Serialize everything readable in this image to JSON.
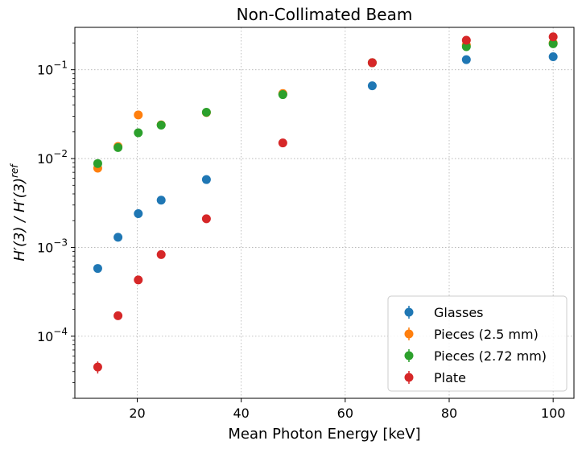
{
  "chart_data": {
    "type": "scatter",
    "title": "Non-Collimated Beam",
    "xlabel": "Mean Photon Energy [keV]",
    "ylabel": "H′(3) / H′(3)",
    "ylabel_superscript": "ref",
    "xlim": [
      8,
      104
    ],
    "ylim": [
      2e-05,
      0.3
    ],
    "yscale": "log",
    "grid": true,
    "legend_position": "lower-right",
    "x_ticks": [
      20,
      40,
      60,
      80,
      100
    ],
    "x_tick_labels": [
      "20",
      "40",
      "60",
      "80",
      "100"
    ],
    "y_ticks": [
      0.0001,
      0.001,
      0.01,
      0.1
    ],
    "y_tick_bases": [
      "10",
      "10",
      "10",
      "10"
    ],
    "y_tick_exponents": [
      "−4",
      "−3",
      "−2",
      "−1"
    ],
    "series": [
      {
        "name": "Glasses",
        "color": "#1f77b4",
        "x": [
          12.4,
          16.3,
          20.2,
          24.6,
          33.3,
          48,
          65.2,
          83.3,
          100
        ],
        "y": [
          0.00058,
          0.0013,
          0.0024,
          0.0034,
          0.0058,
          0.053,
          0.066,
          0.13,
          0.14
        ],
        "yerr": [
          6e-05,
          6e-05,
          0.0001,
          0.00014,
          0.0002,
          0.002,
          0.002,
          0.004,
          0.004
        ]
      },
      {
        "name": "Pieces (2.5 mm)",
        "color": "#ff7f0e",
        "x": [
          12.4,
          16.3,
          20.2,
          24.6,
          33.3,
          48,
          65.2,
          83.3,
          100
        ],
        "y": [
          0.0078,
          0.0137,
          0.031,
          0.024,
          0.033,
          0.054,
          0.12,
          0.19,
          0.2
        ],
        "yerr": [
          0.0003,
          0.0005,
          0.001,
          0.0008,
          0.001,
          0.002,
          0.004,
          0.005,
          0.005
        ]
      },
      {
        "name": "Pieces (2.72 mm)",
        "color": "#2ca02c",
        "x": [
          12.4,
          16.3,
          20.2,
          24.6,
          33.3,
          48,
          65.2,
          83.3,
          100
        ],
        "y": [
          0.0088,
          0.0133,
          0.0195,
          0.0238,
          0.0332,
          0.0525,
          0.12,
          0.182,
          0.196
        ],
        "yerr": [
          0.0003,
          0.0005,
          0.0007,
          0.0008,
          0.001,
          0.002,
          0.004,
          0.005,
          0.005
        ]
      },
      {
        "name": "Plate",
        "color": "#d62728",
        "x": [
          12.4,
          16.3,
          20.2,
          24.6,
          33.3,
          48,
          65.2,
          83.3,
          100
        ],
        "y": [
          4.5e-05,
          0.00017,
          0.00043,
          0.00083,
          0.0021,
          0.015,
          0.12,
          0.215,
          0.235
        ],
        "yerr": [
          7e-06,
          1e-05,
          2e-05,
          3e-05,
          8e-05,
          0.0005,
          0.004,
          0.006,
          0.006
        ]
      }
    ]
  }
}
